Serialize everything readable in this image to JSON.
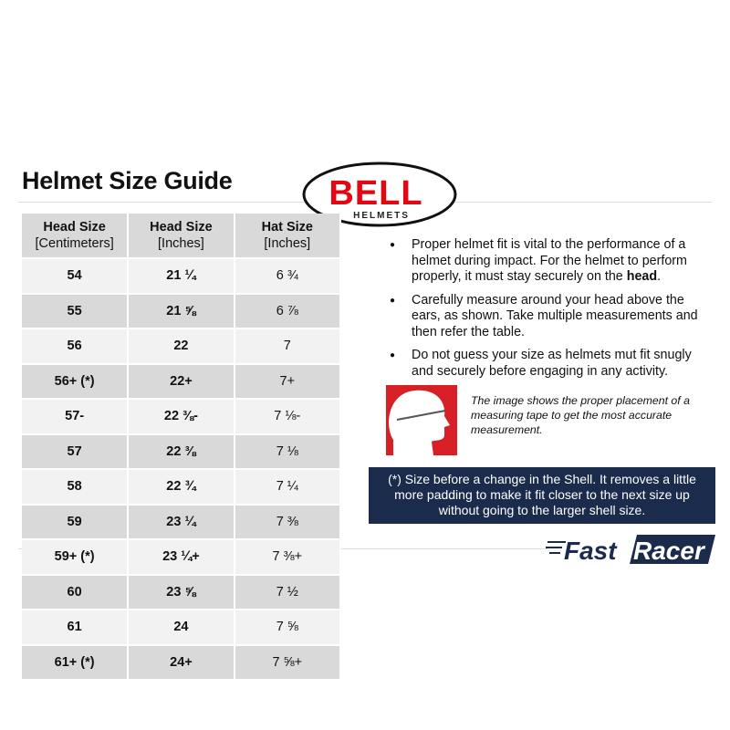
{
  "title": "Helmet Size Guide",
  "logo": {
    "brand": "BELL",
    "sub": "HELMETS",
    "color": "#e30613"
  },
  "table": {
    "headers": [
      {
        "bold": "Head Size",
        "sub": "[Centimeters]"
      },
      {
        "bold": "Head Size",
        "sub": "[Inches]"
      },
      {
        "bold": "Hat Size",
        "sub": "[Inches]"
      }
    ],
    "rows": [
      [
        "54",
        "21 ¼",
        "6 ¾"
      ],
      [
        "55",
        "21 ⅝",
        "6 ⅞"
      ],
      [
        "56",
        "22",
        "7"
      ],
      [
        "56+ (*)",
        "22+",
        "7+"
      ],
      [
        "57-",
        "22 ⅜-",
        "7 ⅛-"
      ],
      [
        "57",
        "22 ⅜",
        "7 ⅛"
      ],
      [
        "58",
        "22 ¾",
        "7 ¼"
      ],
      [
        "59",
        "23 ¼",
        "7 ⅜"
      ],
      [
        "59+ (*)",
        "23 ¼+",
        "7 ⅜+"
      ],
      [
        "60",
        "23 ⅝",
        "7 ½"
      ],
      [
        "61",
        "24",
        "7 ⅝"
      ],
      [
        "61+ (*)",
        "24+",
        "7 ⅝+"
      ]
    ]
  },
  "bullets": [
    {
      "text": "Proper helmet fit is vital to the performance of a helmet during impact. For the helmet to perform properly, it must stay securely on the ",
      "bold": "head",
      "end": "."
    },
    {
      "text": "Carefully measure around your head above the ears, as shown. Take multiple measurements and then refer the table.",
      "bold": "",
      "end": ""
    },
    {
      "text": "Do not guess your size as helmets mut fit snugly and securely before engaging in any activity.",
      "bold": "",
      "end": ""
    }
  ],
  "caption": "The image shows the proper placement of a measuring tape to get the most accurate measurement.",
  "note": "(*) Size before a change in the Shell. It removes a little more padding to make it fit closer to the next size up without going to the larger shell size.",
  "footer_logo": {
    "text": "FastRacer",
    "color": "#1b2b4b"
  }
}
